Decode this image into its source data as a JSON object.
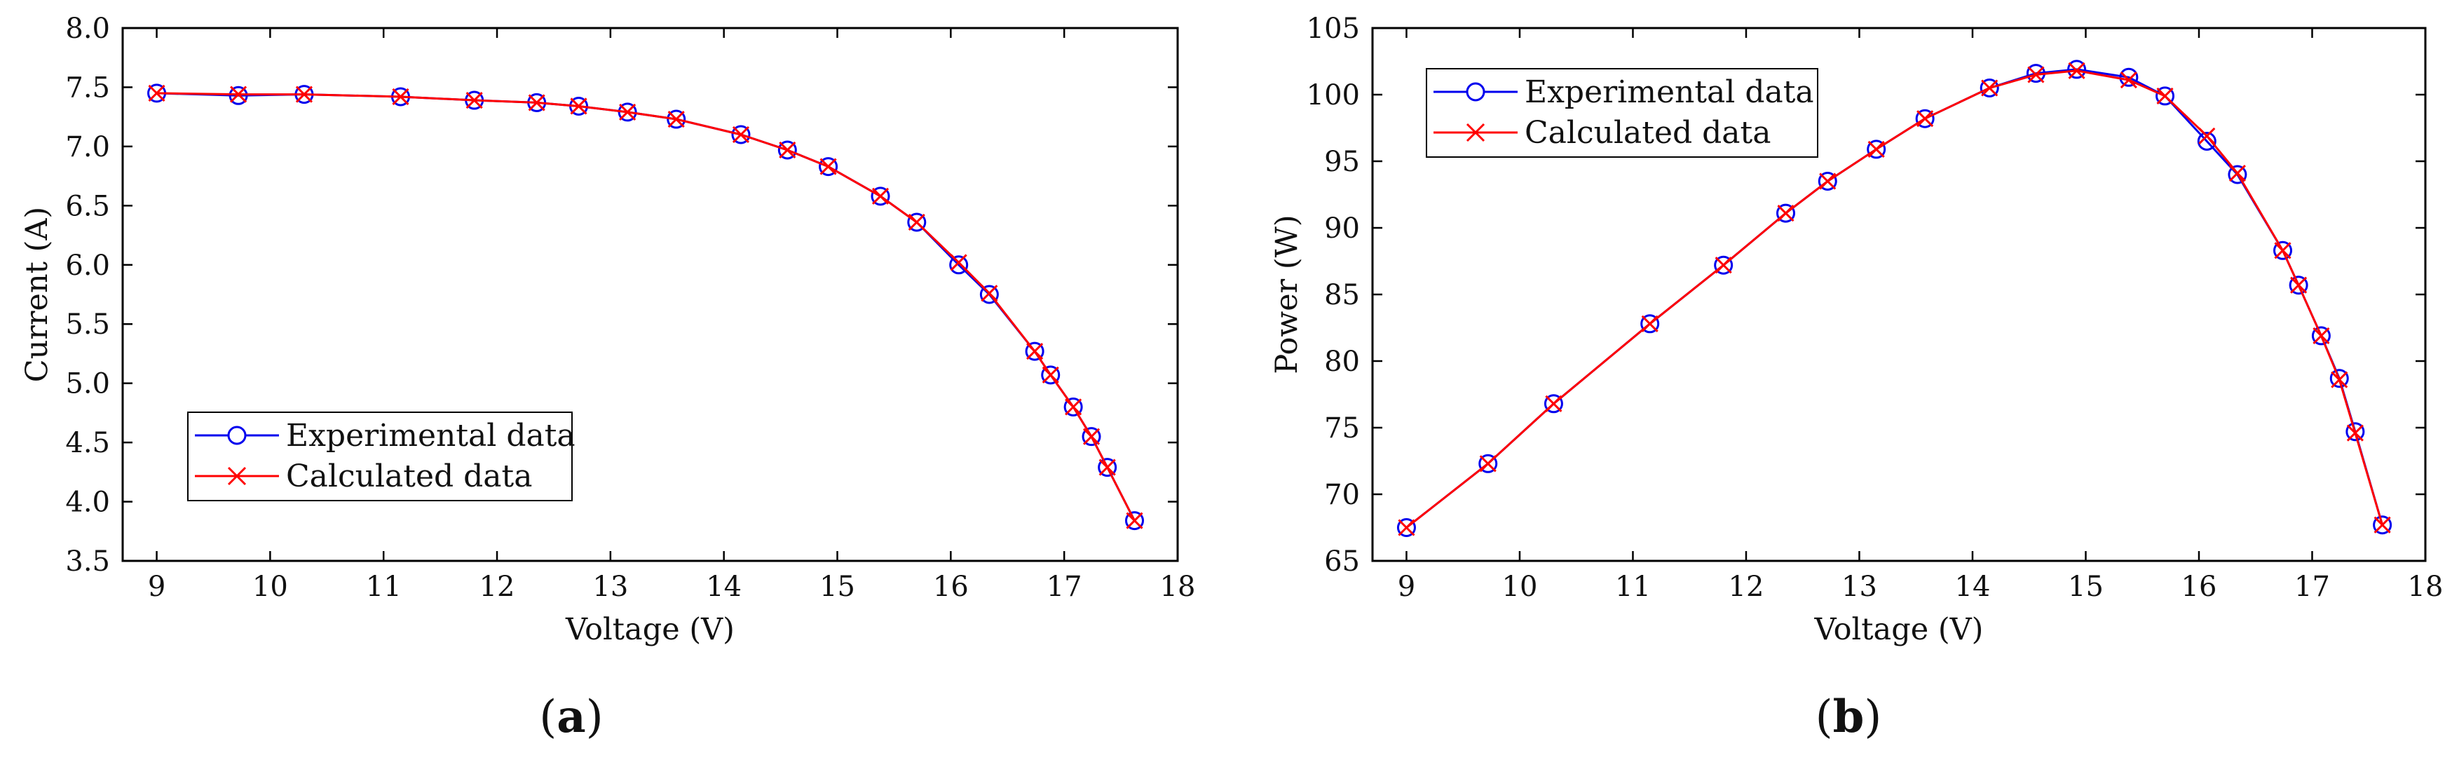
{
  "chart_data": [
    {
      "type": "line",
      "panel_label": "a",
      "xlabel": "Voltage (V)",
      "ylabel": "Current (A)",
      "xlim": [
        8.7,
        18
      ],
      "ylim": [
        3.5,
        8.0
      ],
      "xticks": [
        "9",
        "10",
        "11",
        "12",
        "13",
        "14",
        "15",
        "16",
        "17",
        "18"
      ],
      "yticks": [
        "3.5",
        "4.0",
        "4.5",
        "5.0",
        "5.5",
        "6.0",
        "6.5",
        "7.0",
        "7.5",
        "8.0"
      ],
      "x": [
        9.0,
        9.72,
        10.3,
        11.15,
        11.8,
        12.35,
        12.72,
        13.15,
        13.58,
        14.15,
        14.56,
        14.92,
        15.38,
        15.7,
        16.07,
        16.34,
        16.74,
        16.88,
        17.08,
        17.24,
        17.38,
        17.62
      ],
      "series": [
        {
          "name": "Experimental data",
          "marker": "circle",
          "color": "#0000ee",
          "values": [
            7.45,
            7.43,
            7.44,
            7.42,
            7.39,
            7.37,
            7.34,
            7.29,
            7.23,
            7.1,
            6.97,
            6.83,
            6.58,
            6.36,
            6.0,
            5.75,
            5.27,
            5.07,
            4.8,
            4.55,
            4.29,
            3.84
          ]
        },
        {
          "name": "Calculated data",
          "marker": "x",
          "color": "#ff0000",
          "values": [
            7.45,
            7.44,
            7.44,
            7.42,
            7.39,
            7.37,
            7.34,
            7.29,
            7.23,
            7.1,
            6.97,
            6.83,
            6.58,
            6.36,
            6.02,
            5.76,
            5.27,
            5.07,
            4.8,
            4.55,
            4.29,
            3.84
          ]
        }
      ],
      "legend_position": "lower-left"
    },
    {
      "type": "line",
      "panel_label": "b",
      "xlabel": "Voltage (V)",
      "ylabel": "Power (W)",
      "xlim": [
        8.7,
        18
      ],
      "ylim": [
        65,
        105
      ],
      "xticks": [
        "9",
        "10",
        "11",
        "12",
        "13",
        "14",
        "15",
        "16",
        "17",
        "18"
      ],
      "yticks": [
        "65",
        "70",
        "75",
        "80",
        "85",
        "90",
        "95",
        "100",
        "105"
      ],
      "x": [
        9.0,
        9.72,
        10.3,
        11.15,
        11.8,
        12.35,
        12.72,
        13.15,
        13.58,
        14.15,
        14.56,
        14.92,
        15.38,
        15.7,
        16.07,
        16.34,
        16.74,
        16.88,
        17.08,
        17.24,
        17.38,
        17.62
      ],
      "series": [
        {
          "name": "Experimental data",
          "marker": "circle",
          "color": "#0000ee",
          "values": [
            67.5,
            72.3,
            76.8,
            82.8,
            87.2,
            91.1,
            93.5,
            95.9,
            98.2,
            100.5,
            101.6,
            101.9,
            101.3,
            99.9,
            96.5,
            94.0,
            88.3,
            85.7,
            81.9,
            78.7,
            74.7,
            67.7
          ]
        },
        {
          "name": "Calculated data",
          "marker": "x",
          "color": "#ff0000",
          "values": [
            67.5,
            72.3,
            76.8,
            82.8,
            87.2,
            91.1,
            93.5,
            95.9,
            98.2,
            100.5,
            101.5,
            101.8,
            101.1,
            99.9,
            96.9,
            94.1,
            88.3,
            85.7,
            81.9,
            78.6,
            74.6,
            67.7
          ]
        }
      ],
      "legend_position": "upper-left"
    }
  ]
}
